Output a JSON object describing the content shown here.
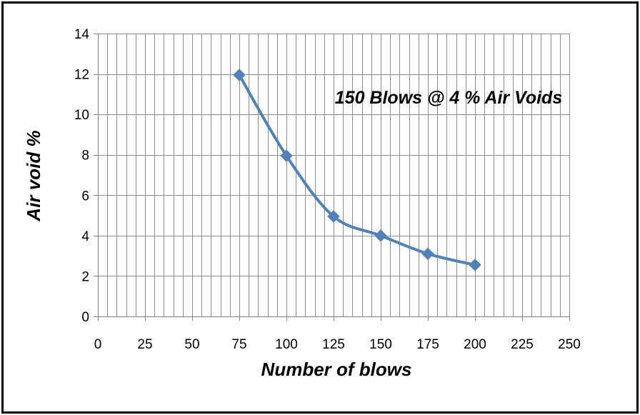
{
  "chart_data": {
    "type": "scatter",
    "title": "",
    "xlabel": "Number of blows",
    "ylabel": "Air void  %",
    "xlim": [
      0,
      250
    ],
    "ylim": [
      0,
      14
    ],
    "x_ticks": [
      0,
      25,
      50,
      75,
      100,
      125,
      150,
      175,
      200,
      225,
      250
    ],
    "y_ticks": [
      0,
      2,
      4,
      6,
      8,
      10,
      12,
      14
    ],
    "x_minor_step": 5,
    "grid": true,
    "smooth_line": true,
    "annotation": "150  Blows @ 4 % Air Voids",
    "series": [
      {
        "marker": "diamond",
        "color": "#4f81bd",
        "x": [
          75,
          100,
          125,
          150,
          175,
          200
        ],
        "y": [
          11.95,
          7.95,
          4.95,
          4.0,
          3.1,
          2.55
        ]
      }
    ]
  }
}
